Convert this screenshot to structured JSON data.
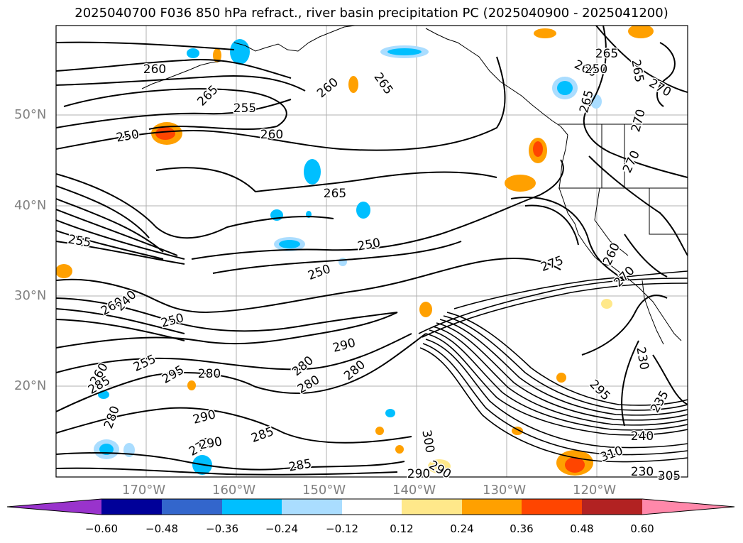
{
  "title": "2025040700 F036 850 hPa refract., river basin precipitation PC (2025040900 - 2025041200)",
  "map": {
    "lat_labels": [
      "50°N",
      "40°N",
      "30°N",
      "20°N"
    ],
    "lon_labels": [
      "170°W",
      "160°W",
      "150°W",
      "140°W",
      "130°W",
      "120°W"
    ],
    "contour_labels": [
      "260",
      "265",
      "255",
      "250",
      "260",
      "260",
      "265",
      "265",
      "260",
      "265",
      "270",
      "265",
      "270",
      "270",
      "250",
      "265",
      "255",
      "250",
      "250",
      "275",
      "270",
      "260",
      "260",
      "240",
      "250",
      "255",
      "260",
      "285",
      "295",
      "280",
      "280",
      "290",
      "280",
      "280",
      "280",
      "290",
      "275",
      "290",
      "285",
      "285",
      "290",
      "290",
      "300",
      "295",
      "230",
      "235",
      "240",
      "230",
      "305",
      "310"
    ]
  },
  "colorbar": {
    "ticks": [
      "−0.60",
      "−0.48",
      "−0.36",
      "−0.24",
      "−0.12",
      "0.12",
      "0.24",
      "0.36",
      "0.48",
      "0.60"
    ],
    "colors": [
      "#9933cc",
      "#000099",
      "#3366cc",
      "#00bfff",
      "#aaddff",
      "#ffffff",
      "#ffe88a",
      "#ffa000",
      "#ff4500",
      "#b22222",
      "#ff88aa"
    ]
  }
}
